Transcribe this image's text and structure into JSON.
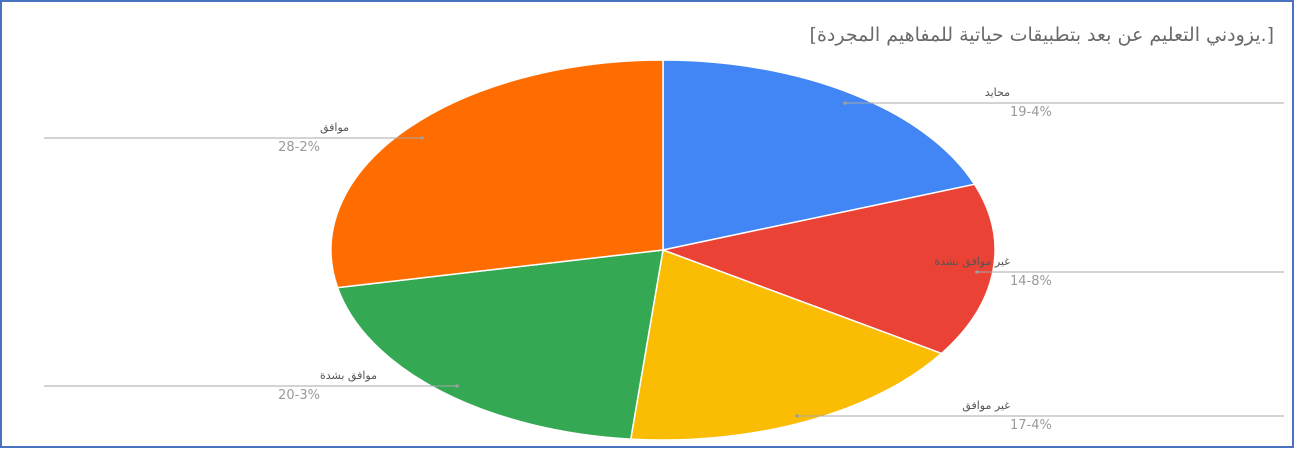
{
  "chart_data": {
    "type": "pie",
    "title": "[.يزودني التعليم عن بعد بتطبيقات حياتية للمفاهيم المجردة]",
    "slices": [
      {
        "label": "محايد",
        "value": 19.4,
        "value_label": "19-4%",
        "color": "#4285f4"
      },
      {
        "label": "غير موافق بشدة",
        "value": 14.8,
        "value_label": "14-8%",
        "color": "#ea4335"
      },
      {
        "label": "غير موافق",
        "value": 17.4,
        "value_label": "17-4%",
        "color": "#fbbc04"
      },
      {
        "label": "موافق بشدة",
        "value": 20.3,
        "value_label": "20-3%",
        "color": "#34a853"
      },
      {
        "label": "موافق",
        "value": 28.2,
        "value_label": "28-2%",
        "color": "#ff6d01"
      }
    ],
    "start_angle": "12 o'clock",
    "direction": "clockwise",
    "legend": "none"
  }
}
